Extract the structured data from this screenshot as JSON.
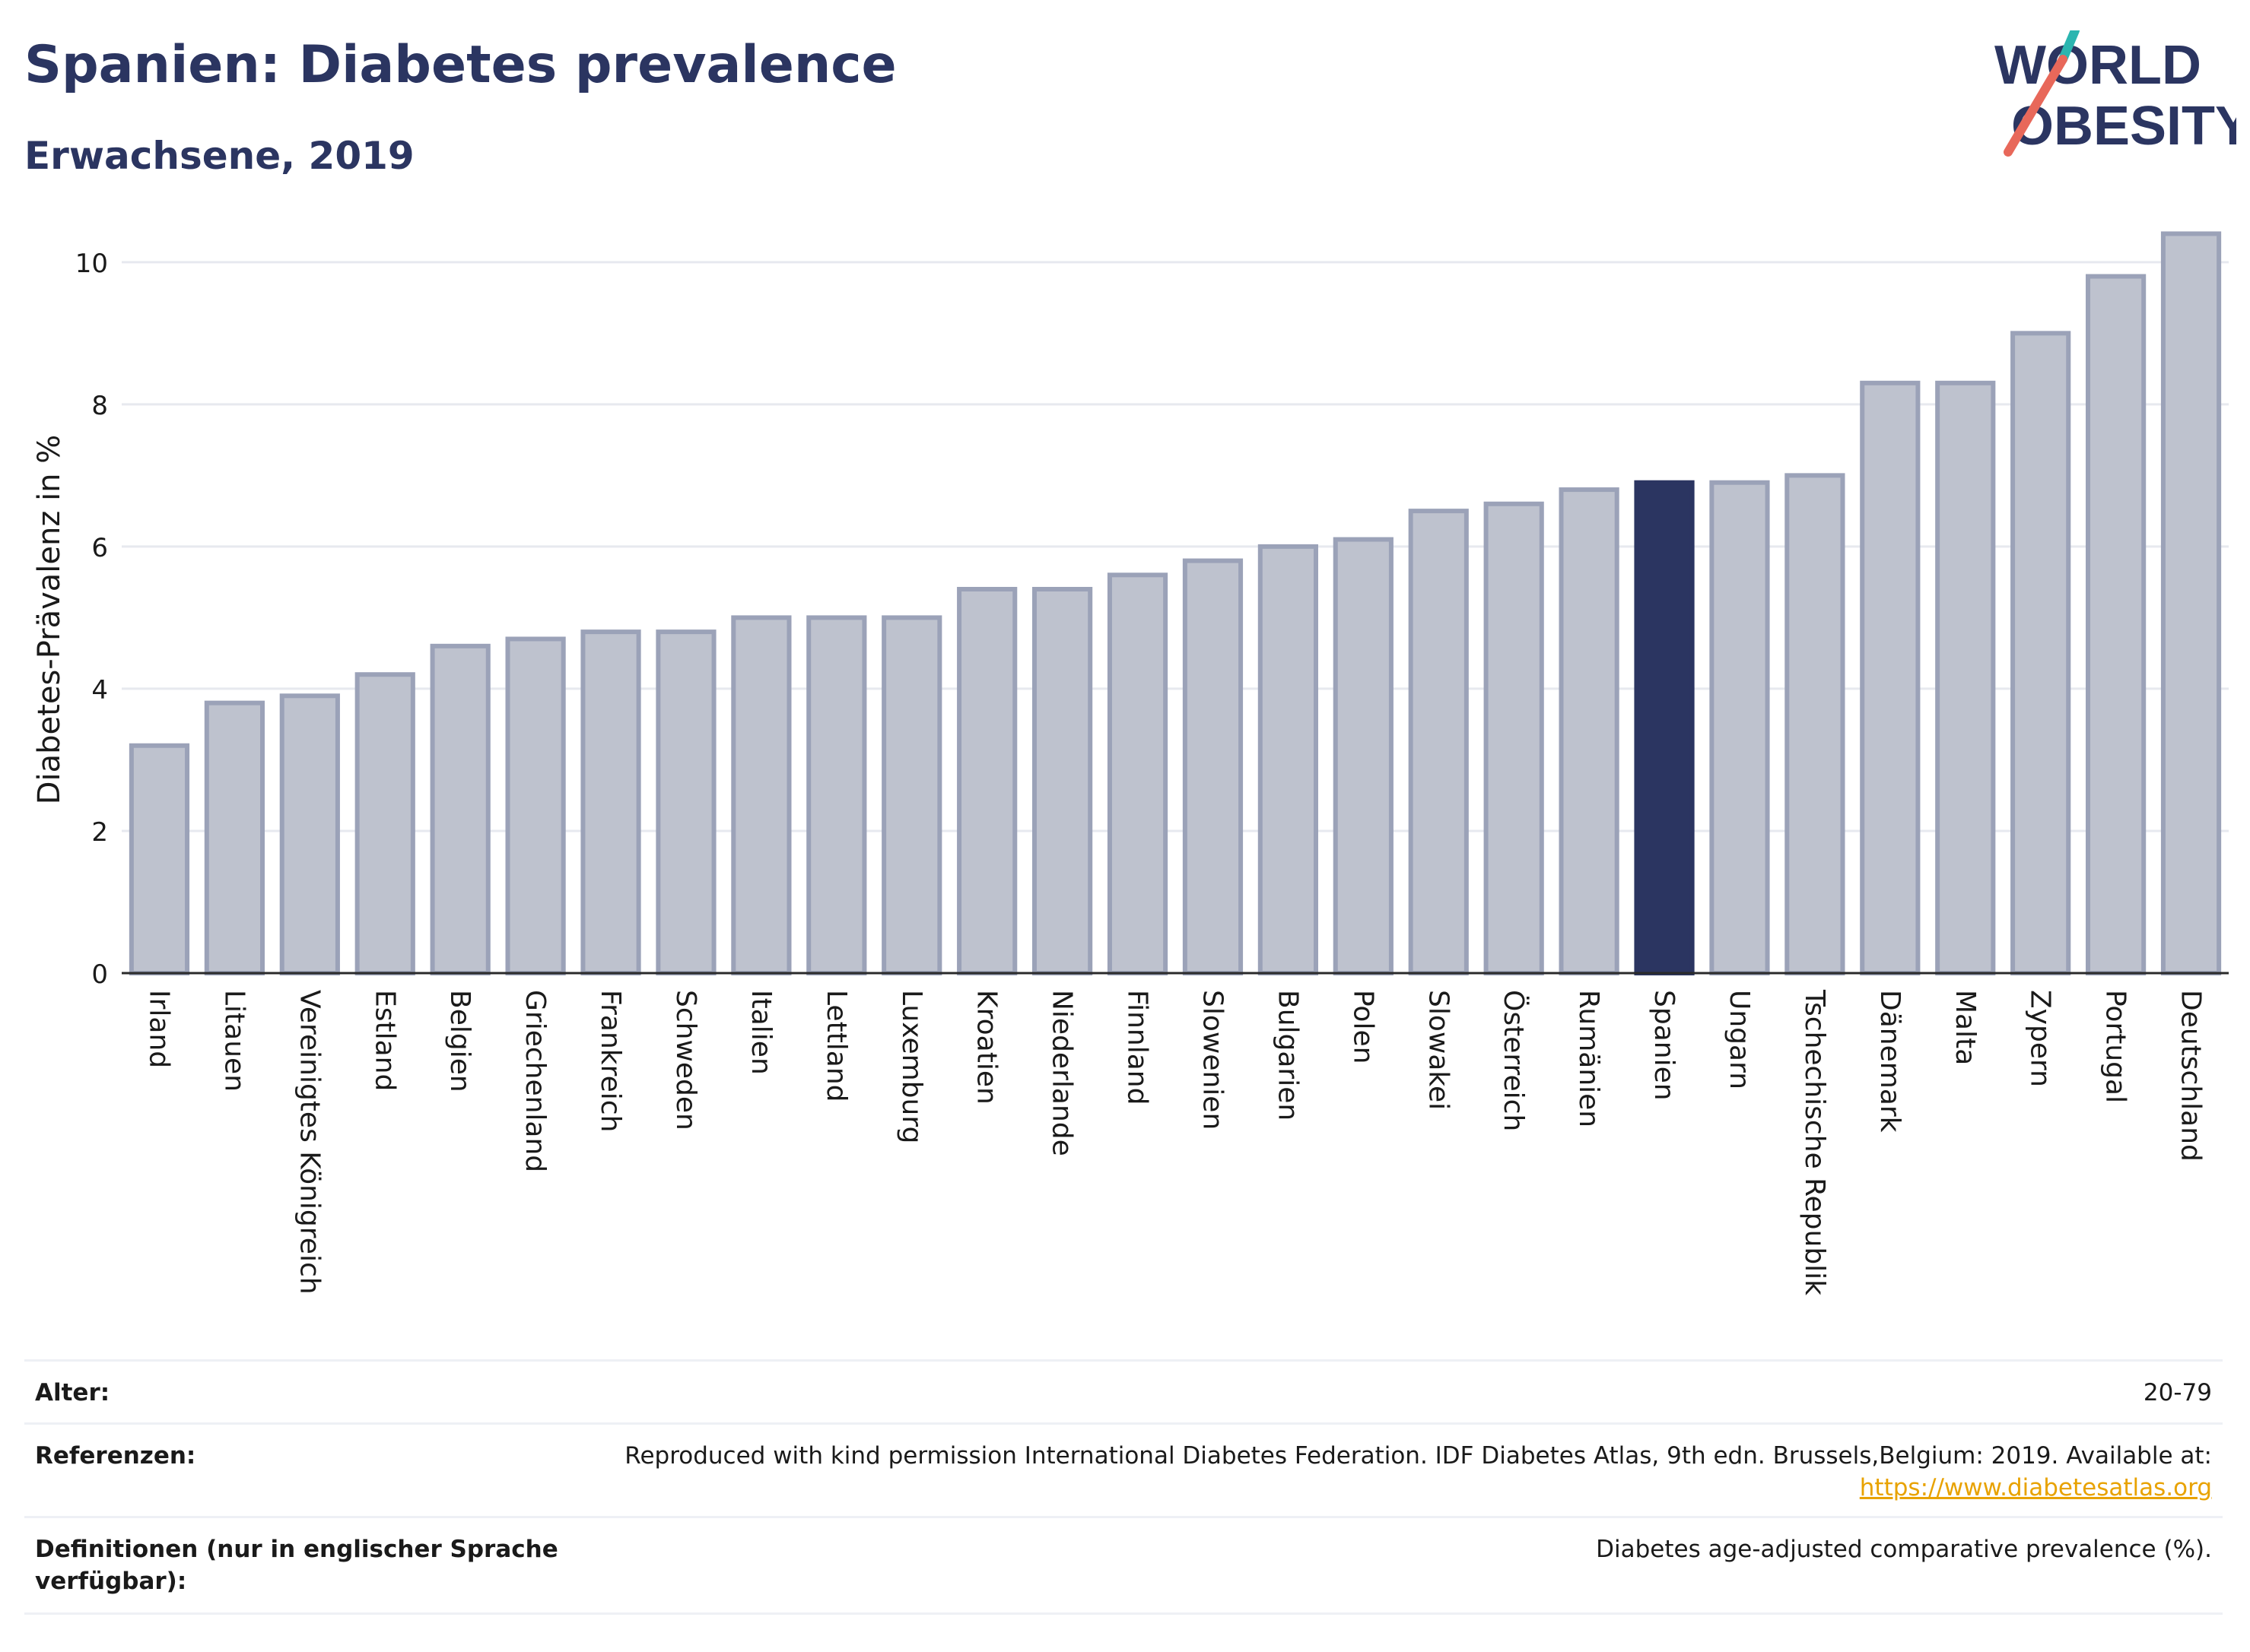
{
  "header": {
    "title": "Spanien: Diabetes prevalence",
    "subtitle": "Erwachsene, 2019"
  },
  "logo": {
    "line1": "WORLD",
    "line2": "OBESITY",
    "colors": {
      "text": "#2b3561",
      "slash_top": "#2bb5b0",
      "slash_bottom": "#e8685a"
    }
  },
  "chart_data": {
    "type": "bar",
    "ylabel": "Diabetes-Prävalenz in %",
    "xlabel": "",
    "ylim": [
      0,
      10.8
    ],
    "yticks": [
      0,
      2,
      4,
      6,
      8,
      10
    ],
    "grid": true,
    "highlight": "Spanien",
    "colors": {
      "bar": "#bec2ce",
      "bar_stroke": "#9ba2b8",
      "highlight": "#2b3561",
      "grid": "#e7e9ef",
      "axis": "#2a2a2a"
    },
    "categories": [
      "Irland",
      "Litauen",
      "Vereinigtes Königreich",
      "Estland",
      "Belgien",
      "Griechenland",
      "Frankreich",
      "Schweden",
      "Italien",
      "Lettland",
      "Luxemburg",
      "Kroatien",
      "Niederlande",
      "Finnland",
      "Slowenien",
      "Bulgarien",
      "Polen",
      "Slowakei",
      "Österreich",
      "Rumänien",
      "Spanien",
      "Ungarn",
      "Tschechische Republik",
      "Dänemark",
      "Malta",
      "Zypern",
      "Portugal",
      "Deutschland"
    ],
    "values": [
      3.2,
      3.8,
      3.9,
      4.2,
      4.6,
      4.7,
      4.8,
      4.8,
      5.0,
      5.0,
      5.0,
      5.4,
      5.4,
      5.6,
      5.8,
      6.0,
      6.1,
      6.5,
      6.6,
      6.8,
      6.9,
      6.9,
      7.0,
      8.3,
      8.3,
      9.0,
      9.8,
      10.4
    ]
  },
  "meta": {
    "age_label": "Alter:",
    "age_value": "20-79",
    "ref_label": "Referenzen:",
    "ref_text": "Reproduced with kind permission International Diabetes Federation. IDF Diabetes Atlas, 9th edn. Brussels,Belgium: 2019. Available at:",
    "ref_link": "https://www.diabetesatlas.org",
    "def_label_1": "Definitionen (nur in englischer Sprache",
    "def_label_2": "verfügbar):",
    "def_value": "Diabetes age-adjusted comparative prevalence (%)."
  }
}
